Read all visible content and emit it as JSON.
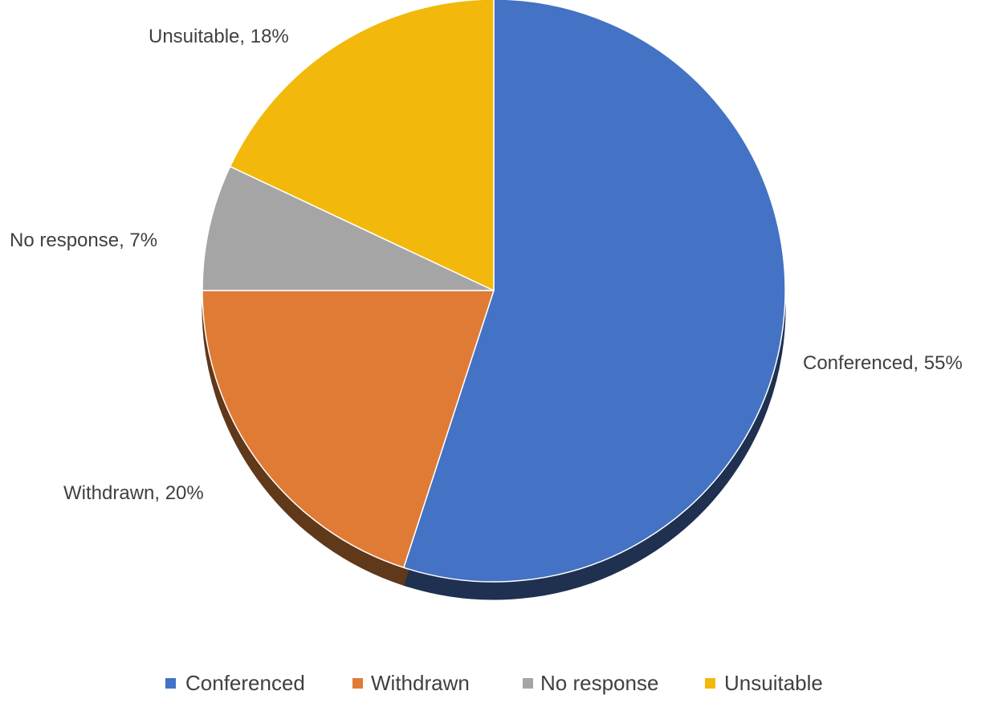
{
  "chart_data": {
    "type": "pie",
    "title": "",
    "slices": [
      {
        "name": "Conferenced",
        "value": 55,
        "label": "Conferenced, 55%",
        "color": "#4472C4",
        "shadow": "#1F3050"
      },
      {
        "name": "Withdrawn",
        "value": 20,
        "label": "Withdrawn,  20%",
        "color": "#E07B36",
        "shadow": "#60381A"
      },
      {
        "name": "No response",
        "value": 7,
        "label": "No response, 7%",
        "color": "#A5A5A5",
        "shadow": "#555555"
      },
      {
        "name": "Unsuitable",
        "value": 18,
        "label": "Unsuitable, 18%",
        "color": "#F2B90C",
        "shadow": "#7A5E08"
      }
    ],
    "start_angle": "12 o'clock",
    "direction": "clockwise",
    "legend_position": "bottom"
  }
}
